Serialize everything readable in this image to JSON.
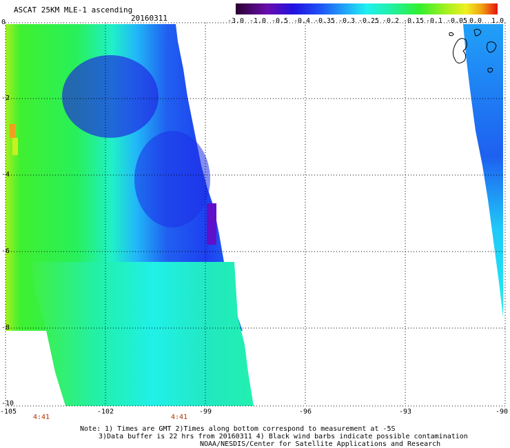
{
  "header": {
    "title": "ASCAT 25KM MLE-1 ascending",
    "date": "20160311"
  },
  "colorbar": {
    "labels": [
      "-3.0",
      "-1.0",
      "-0.5",
      "-0.4",
      "-0.35",
      "-0.3",
      "-0.25",
      "-0.2",
      "-0.15",
      "-0.1",
      "-0.05",
      "0.0",
      "1.0"
    ],
    "colors": [
      "#3a0048",
      "#6a0dad",
      "#3b10d8",
      "#1e3cf0",
      "#2f6bf5",
      "#21a8f8",
      "#20e8f0",
      "#22f0b4",
      "#28f03c",
      "#7ef020",
      "#d8f020",
      "#f8c018",
      "#f06010",
      "#e82010"
    ]
  },
  "map": {
    "lat_labels": [
      "0",
      "-2",
      "-4",
      "-6",
      "-8",
      "-10"
    ],
    "lon_labels": [
      "-105",
      "-102",
      "-99",
      "-96",
      "-93",
      "-90"
    ],
    "time_labels": [
      "4:41",
      "4:41"
    ]
  },
  "notes": {
    "line1": "Note: 1) Times are GMT 2)Times along bottom correspond to measurement at -5S",
    "line2": "3)Data buffer is 22 hrs from 20160311 4) Black wind barbs indicate possible contamination",
    "line3": "NOAA/NESDIS/Center for Satellite Applications and Research"
  }
}
